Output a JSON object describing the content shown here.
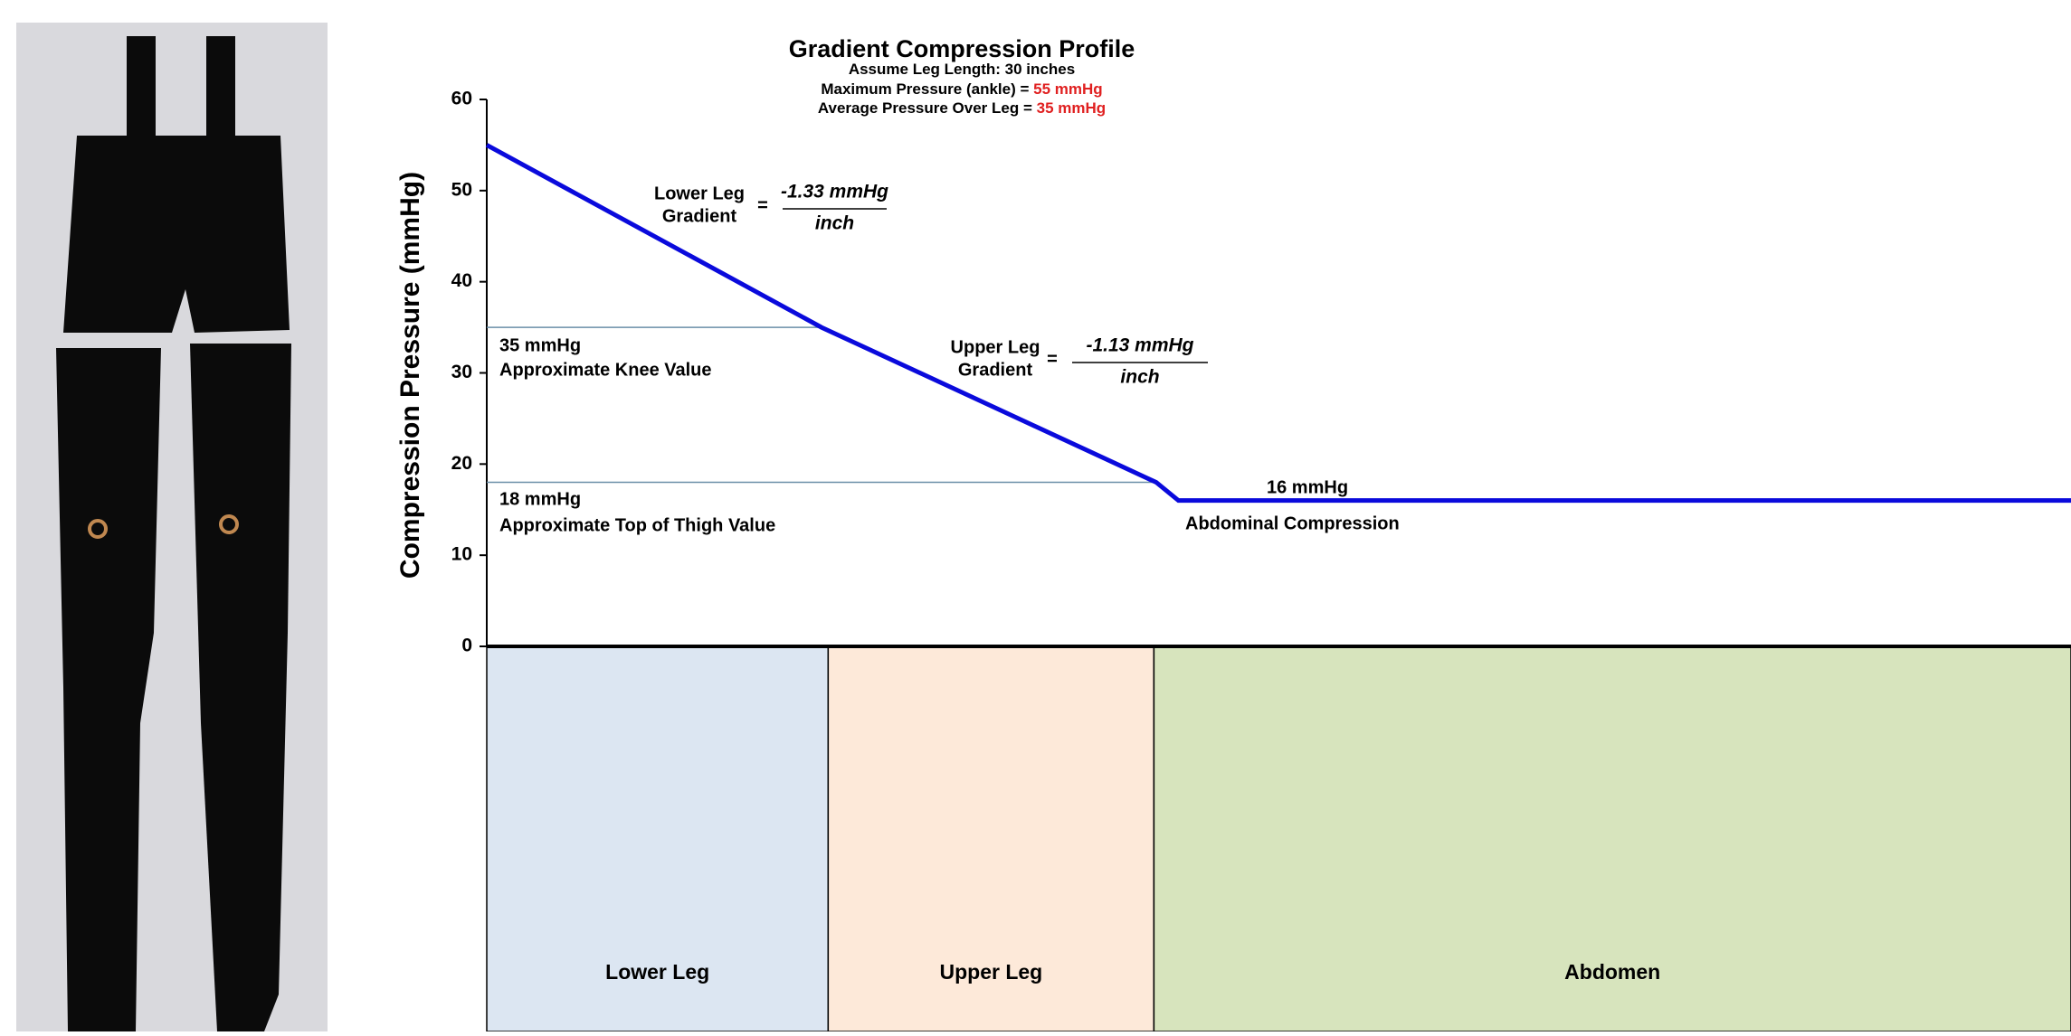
{
  "chart_data": {
    "type": "line",
    "title": "Gradient Compression Profile",
    "subtitle": [
      {
        "text": "Assume Leg Length: 30 inches"
      },
      {
        "text": "Maximum Pressure (ankle) = ",
        "highlight": "55 mmHg"
      },
      {
        "text": "Average Pressure Over Leg = ",
        "highlight": "35 mmHg"
      }
    ],
    "y_label": "Compression Pressure (mmHg)",
    "x": [
      0,
      15,
      30,
      31,
      71
    ],
    "series": [
      {
        "color": "#0a0adc",
        "values": [
          55,
          35,
          18,
          16,
          16
        ]
      }
    ],
    "xlim": [
      0,
      71
    ],
    "ylim": [
      0,
      60
    ],
    "yticks": [
      0,
      10,
      20,
      30,
      40,
      50,
      60
    ],
    "regions": [
      {
        "label": "Lower Leg",
        "from": 0,
        "to": 15.3,
        "color": "#dce6f2"
      },
      {
        "label": "Upper Leg",
        "from": 15.3,
        "to": 29.9,
        "color": "#fde9d9"
      },
      {
        "label": "Abdomen",
        "from": 29.9,
        "to": 71,
        "color": "#d7e4bd"
      }
    ],
    "reference_lines": [
      {
        "y": 35,
        "x_end": 15
      },
      {
        "y": 18,
        "x_end": 30
      }
    ],
    "annotations": [
      {
        "value": "35 mmHg",
        "note": "Approximate Knee Value"
      },
      {
        "value": "18 mmHg",
        "note": "Approximate Top of Thigh Value"
      },
      {
        "value": "16 mmHg",
        "note": "Abdominal Compression"
      }
    ],
    "gradients": [
      {
        "label": [
          "Lower Leg",
          "Gradient"
        ],
        "equals": "=",
        "numerator": "-1.33 mmHg",
        "denominator": "inch"
      },
      {
        "label": [
          "Upper Leg",
          "Gradient"
        ],
        "equals": "=",
        "numerator": "-1.13 mmHg",
        "denominator": "inch"
      }
    ]
  }
}
